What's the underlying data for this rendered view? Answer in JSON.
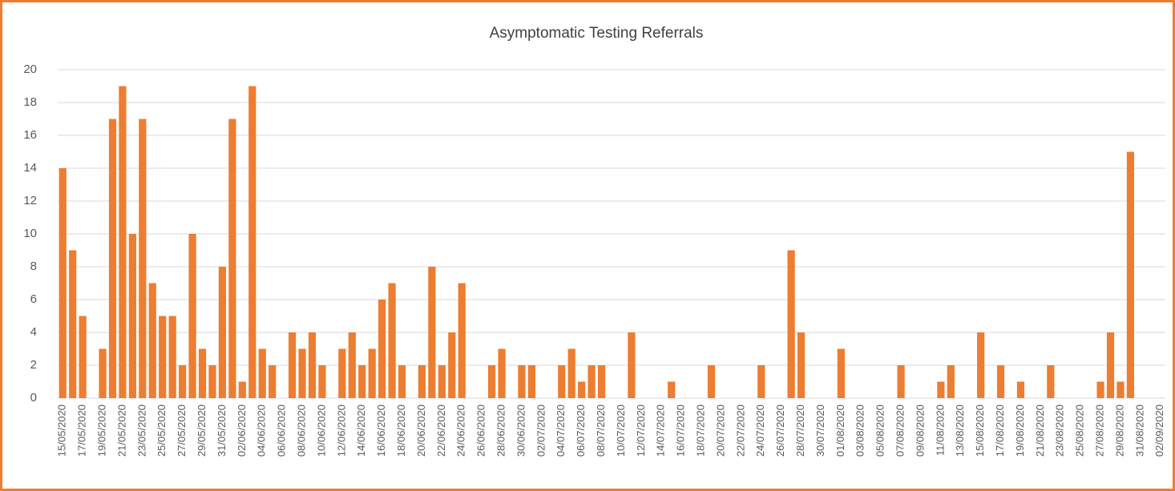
{
  "chart_data": {
    "type": "bar",
    "title": "Asymptomatic Testing Referrals",
    "categories": [
      "15/05/2020",
      null,
      "17/05/2020",
      null,
      "19/05/2020",
      null,
      "21/05/2020",
      null,
      "23/05/2020",
      null,
      "25/05/2020",
      null,
      "27/05/2020",
      null,
      "29/05/2020",
      null,
      "31/05/2020",
      null,
      "02/06/2020",
      null,
      "04/06/2020",
      null,
      "06/06/2020",
      null,
      "08/06/2020",
      null,
      "10/06/2020",
      null,
      "12/06/2020",
      null,
      "14/06/2020",
      null,
      "16/06/2020",
      null,
      "18/06/2020",
      null,
      "20/06/2020",
      null,
      "22/06/2020",
      null,
      "24/06/2020",
      null,
      "26/06/2020",
      null,
      "28/06/2020",
      null,
      "30/06/2020",
      null,
      "02/07/2020",
      null,
      "04/07/2020",
      null,
      "06/07/2020",
      null,
      "08/07/2020",
      null,
      "10/07/2020",
      null,
      "12/07/2020",
      null,
      "14/07/2020",
      null,
      "16/07/2020",
      null,
      "18/07/2020",
      null,
      "20/07/2020",
      null,
      "22/07/2020",
      null,
      "24/07/2020",
      null,
      "26/07/2020",
      null,
      "28/07/2020",
      null,
      "30/07/2020",
      null,
      "01/08/2020",
      null,
      "03/08/2020",
      null,
      "05/08/2020",
      null,
      "07/08/2020",
      null,
      "09/08/2020",
      null,
      "11/08/2020",
      null,
      "13/08/2020",
      null,
      "15/08/2020",
      null,
      "17/08/2020",
      null,
      "19/08/2020",
      null,
      "21/08/2020",
      null,
      "23/08/2020",
      null,
      "25/08/2020",
      null,
      "27/08/2020",
      null,
      "29/08/2020",
      null,
      "31/08/2020",
      null,
      "02/09/2020"
    ],
    "values": [
      14,
      9,
      5,
      0,
      3,
      17,
      19,
      10,
      17,
      7,
      5,
      5,
      2,
      10,
      3,
      2,
      8,
      17,
      1,
      19,
      3,
      2,
      0,
      4,
      3,
      4,
      2,
      0,
      3,
      4,
      2,
      3,
      6,
      7,
      2,
      0,
      2,
      8,
      2,
      4,
      7,
      0,
      0,
      2,
      3,
      0,
      2,
      2,
      0,
      0,
      2,
      3,
      1,
      2,
      2,
      0,
      0,
      4,
      0,
      0,
      0,
      1,
      0,
      0,
      0,
      2,
      0,
      0,
      0,
      0,
      2,
      0,
      0,
      9,
      4,
      0,
      0,
      0,
      3,
      0,
      0,
      0,
      0,
      0,
      2,
      0,
      0,
      0,
      1,
      2,
      0,
      0,
      4,
      0,
      2,
      0,
      1,
      0,
      0,
      2,
      0,
      0,
      0,
      0,
      1,
      4,
      1,
      15,
      0,
      0,
      0
    ],
    "color": "#ed7d31",
    "ylim": [
      0,
      20
    ],
    "yticks": [
      0,
      2,
      4,
      6,
      8,
      10,
      12,
      14,
      16,
      18,
      20
    ],
    "grid": true
  }
}
